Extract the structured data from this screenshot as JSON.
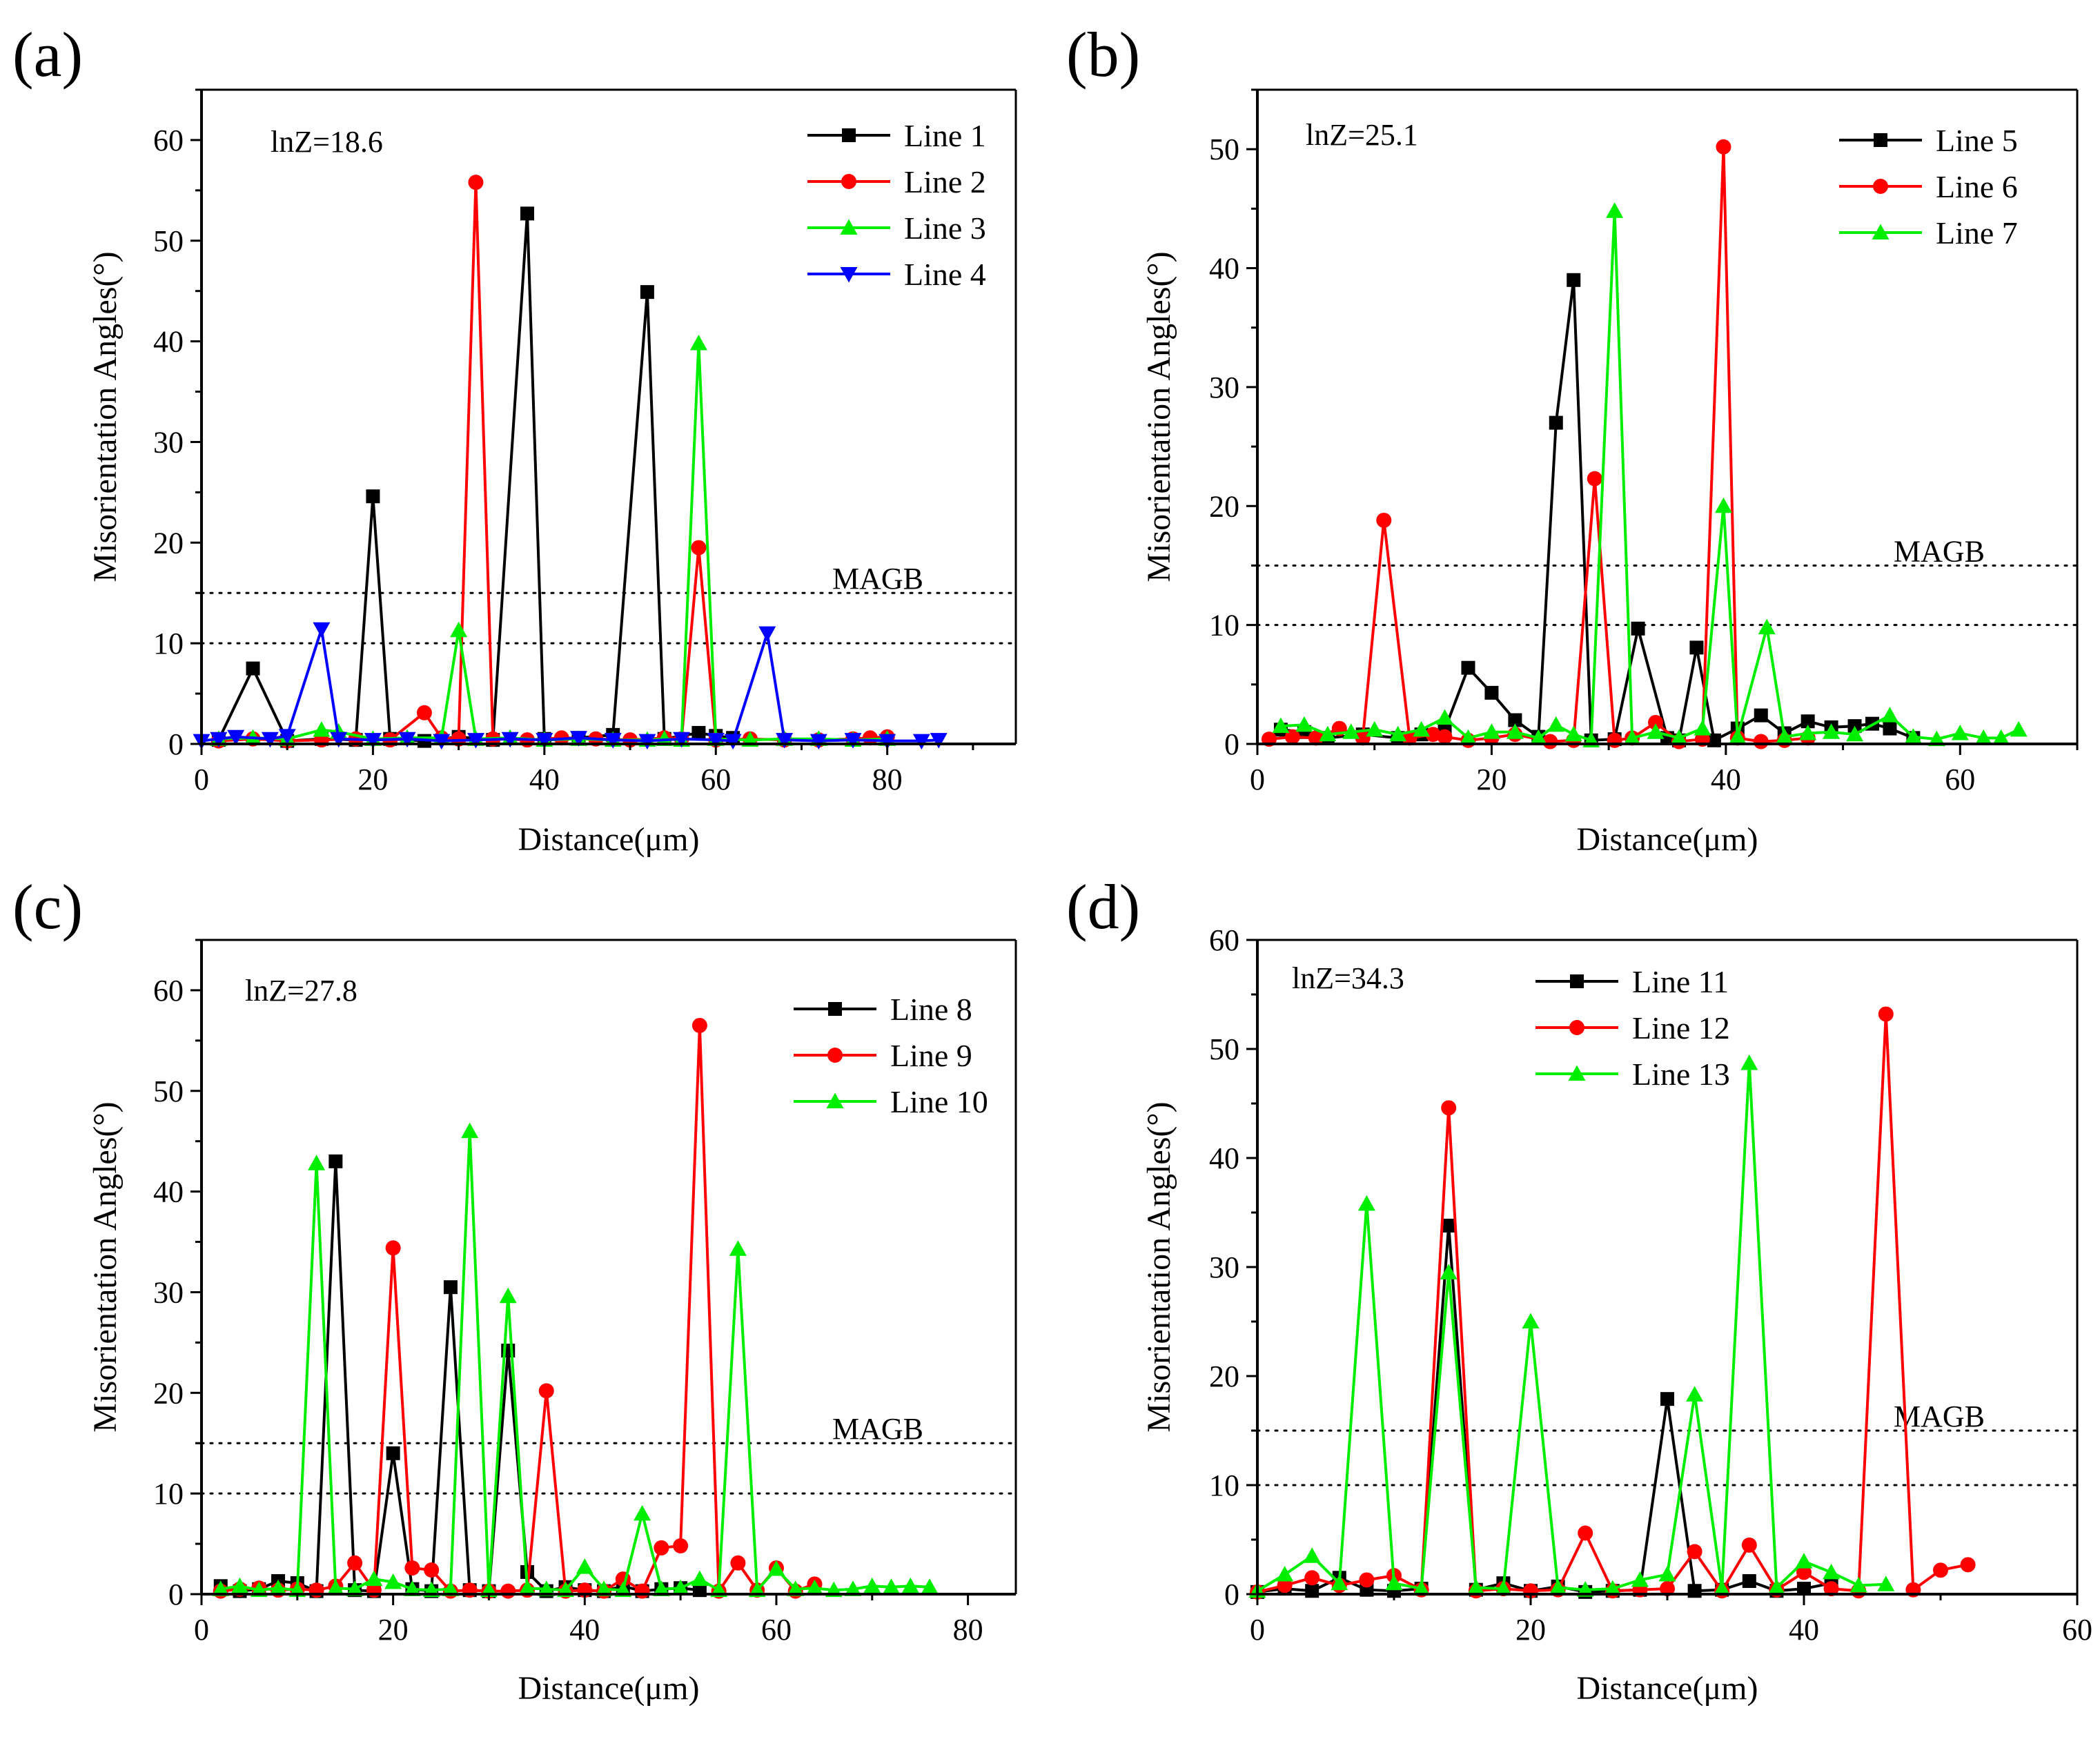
{
  "figure": {
    "panels": [
      "a",
      "b",
      "c",
      "d"
    ]
  },
  "colors": {
    "black": "#000000",
    "red": "#ff0000",
    "green": "#00ee00",
    "blue": "#0000ff"
  },
  "chart_data": [
    {
      "type": "line",
      "panel_label": "(a)",
      "annotation": "lnZ=18.6",
      "threshold_label": "MAGB",
      "thresholds": [
        10,
        15
      ],
      "xlabel": "Distance(μm)",
      "ylabel": "Misorientation Angles(°)",
      "xlim": [
        0,
        95
      ],
      "ylim": [
        0,
        65
      ],
      "xticks": [
        0,
        20,
        40,
        60,
        80
      ],
      "yticks": [
        0,
        10,
        20,
        30,
        40,
        50,
        60
      ],
      "legend_position": "top-right",
      "series": [
        {
          "name": "Line 1",
          "color": "black",
          "marker": "square",
          "x": [
            2,
            6,
            10,
            14,
            18,
            20,
            22,
            26,
            30,
            34,
            38,
            40,
            44,
            48,
            52,
            54,
            58,
            60,
            62
          ],
          "y": [
            0.4,
            7.5,
            0.3,
            0.5,
            0.4,
            24.6,
            0.5,
            0.3,
            0.7,
            0.4,
            52.7,
            0.5,
            0.6,
            0.9,
            44.9,
            0.5,
            1.1,
            0.8,
            0.6
          ]
        },
        {
          "name": "Line 2",
          "color": "red",
          "marker": "circle",
          "x": [
            2,
            6,
            10,
            14,
            18,
            22,
            26,
            28,
            30,
            32,
            34,
            38,
            42,
            46,
            50,
            54,
            56,
            58,
            60,
            64,
            68,
            72,
            76,
            78,
            80
          ],
          "y": [
            0.3,
            0.5,
            0.3,
            0.4,
            0.5,
            0.4,
            3.1,
            0.6,
            0.5,
            55.8,
            0.5,
            0.4,
            0.6,
            0.5,
            0.4,
            0.6,
            0.5,
            19.5,
            0.4,
            0.5,
            0.4,
            0.4,
            0.5,
            0.6,
            0.7
          ]
        },
        {
          "name": "Line 3",
          "color": "green",
          "marker": "triangle-up",
          "x": [
            2,
            6,
            10,
            14,
            16,
            20,
            24,
            28,
            30,
            32,
            36,
            40,
            44,
            48,
            52,
            54,
            56,
            58,
            60,
            64,
            68,
            72,
            76,
            80
          ],
          "y": [
            0.5,
            0.6,
            0.5,
            1.4,
            1.2,
            0.5,
            0.6,
            0.6,
            11.3,
            0.5,
            0.6,
            0.4,
            0.5,
            0.4,
            0.4,
            0.5,
            0.4,
            39.8,
            0.5,
            0.4,
            0.5,
            0.5,
            0.4,
            0.5
          ]
        },
        {
          "name": "Line 4",
          "color": "blue",
          "marker": "triangle-down",
          "x": [
            0,
            2,
            4,
            8,
            10,
            14,
            16,
            20,
            24,
            28,
            32,
            36,
            40,
            44,
            48,
            52,
            56,
            60,
            62,
            66,
            68,
            72,
            76,
            80,
            84,
            86
          ],
          "y": [
            0.3,
            0.5,
            0.7,
            0.5,
            0.8,
            11.4,
            0.5,
            0.4,
            0.5,
            0.3,
            0.4,
            0.5,
            0.4,
            0.6,
            0.4,
            0.3,
            0.5,
            0.4,
            0.3,
            11.0,
            0.4,
            0.3,
            0.4,
            0.3,
            0.3,
            0.4
          ]
        }
      ]
    },
    {
      "type": "line",
      "panel_label": "(b)",
      "annotation": "lnZ=25.1",
      "threshold_label": "MAGB",
      "thresholds": [
        10,
        15
      ],
      "xlabel": "Distance(μm)",
      "ylabel": "Misorientation Angles(°)",
      "xlim": [
        0,
        70
      ],
      "ylim": [
        0,
        55
      ],
      "xticks": [
        0,
        20,
        40,
        60
      ],
      "yticks": [
        0,
        10,
        20,
        30,
        40,
        50
      ],
      "legend_position": "top-right",
      "series": [
        {
          "name": "Line 5",
          "color": "black",
          "marker": "square",
          "x": [
            2,
            4,
            6,
            9,
            12,
            14,
            16,
            18,
            20,
            22,
            24,
            25.5,
            27,
            28.5,
            30.5,
            32.5,
            35,
            36,
            37.5,
            39,
            41,
            43,
            45,
            47,
            49,
            51,
            52.5,
            54,
            56
          ],
          "y": [
            1.2,
            1.0,
            0.5,
            0.8,
            0.5,
            0.8,
            1.2,
            6.4,
            4.3,
            2.0,
            0.6,
            27.0,
            39.0,
            0.3,
            0.4,
            9.7,
            0.5,
            0.3,
            8.1,
            0.3,
            1.3,
            2.4,
            0.9,
            1.9,
            1.4,
            1.5,
            1.7,
            1.3,
            0.5
          ]
        },
        {
          "name": "Line 6",
          "color": "red",
          "marker": "circle",
          "x": [
            1,
            3,
            5,
            7,
            9,
            10.8,
            13,
            15,
            16,
            18,
            20,
            22,
            25,
            27,
            28.8,
            30.5,
            32,
            34,
            36,
            38,
            39.8,
            41,
            43,
            45,
            47
          ],
          "y": [
            0.4,
            0.6,
            0.5,
            1.3,
            0.5,
            18.8,
            0.5,
            0.8,
            0.6,
            0.3,
            0.5,
            0.8,
            0.2,
            0.3,
            22.3,
            0.3,
            0.5,
            1.8,
            0.2,
            0.4,
            50.2,
            0.5,
            0.2,
            0.3,
            0.5
          ]
        },
        {
          "name": "Line 7",
          "color": "green",
          "marker": "triangle-up",
          "x": [
            2,
            4,
            6,
            8,
            10,
            12,
            14,
            16,
            18,
            20,
            22,
            24,
            25.5,
            27,
            28.5,
            30.5,
            32,
            34,
            36,
            38,
            39.8,
            41,
            43.5,
            45,
            47,
            49,
            51,
            54,
            56,
            58,
            60,
            62,
            63.5,
            65
          ],
          "y": [
            1.5,
            1.6,
            0.8,
            1.0,
            1.2,
            0.8,
            1.2,
            2.2,
            0.5,
            1.0,
            1.0,
            0.5,
            1.6,
            0.8,
            0.3,
            44.8,
            0.5,
            1.0,
            0.5,
            1.3,
            20.0,
            0.6,
            9.8,
            0.6,
            0.9,
            1.0,
            0.8,
            2.4,
            0.6,
            0.4,
            0.9,
            0.5,
            0.5,
            1.2
          ]
        }
      ]
    },
    {
      "type": "line",
      "panel_label": "(c)",
      "annotation": "lnZ=27.8",
      "threshold_label": "MAGB",
      "thresholds": [
        10,
        15
      ],
      "xlabel": "Distance(μm)",
      "ylabel": "Misorientation Angles(°)",
      "xlim": [
        0,
        85
      ],
      "ylim": [
        0,
        65
      ],
      "xticks": [
        0,
        20,
        40,
        60,
        80
      ],
      "yticks": [
        0,
        10,
        20,
        30,
        40,
        50,
        60
      ],
      "legend_position": "top-right",
      "series": [
        {
          "name": "Line 8",
          "color": "black",
          "marker": "square",
          "x": [
            2,
            4,
            6,
            8,
            10,
            12,
            14,
            16,
            18,
            20,
            22,
            24,
            26,
            28,
            30,
            32,
            34,
            36,
            38,
            40,
            42,
            44,
            46,
            48,
            50,
            52
          ],
          "y": [
            0.8,
            0.3,
            0.5,
            1.3,
            1.1,
            0.3,
            43.0,
            0.4,
            0.3,
            14.0,
            0.5,
            0.3,
            30.5,
            0.4,
            0.3,
            24.2,
            2.2,
            0.3,
            0.7,
            0.4,
            0.3,
            0.8,
            0.3,
            0.5,
            0.6,
            0.4
          ]
        },
        {
          "name": "Line 9",
          "color": "red",
          "marker": "circle",
          "x": [
            2,
            4,
            6,
            8,
            10,
            12,
            14,
            16,
            18,
            20,
            22,
            24,
            26,
            28,
            30,
            32,
            34,
            36,
            38,
            40,
            42,
            44,
            46,
            48,
            50,
            52,
            54,
            56,
            58,
            60,
            62,
            64
          ],
          "y": [
            0.3,
            0.5,
            0.6,
            0.4,
            0.5,
            0.4,
            0.8,
            3.1,
            0.4,
            34.4,
            2.6,
            2.4,
            0.3,
            0.4,
            0.3,
            0.3,
            0.4,
            20.2,
            0.3,
            0.4,
            0.3,
            1.5,
            0.3,
            4.6,
            4.8,
            56.5,
            0.3,
            3.1,
            0.4,
            2.6,
            0.3,
            1.0
          ]
        },
        {
          "name": "Line 10",
          "color": "green",
          "marker": "triangle-up",
          "x": [
            2,
            4,
            6,
            8,
            10,
            12,
            14,
            16,
            18,
            20,
            22,
            24,
            26,
            28,
            30,
            32,
            34,
            36,
            38,
            40,
            42,
            44,
            46,
            48,
            50,
            52,
            54,
            56,
            58,
            60,
            62,
            64,
            66,
            68,
            70,
            72,
            74,
            76
          ],
          "y": [
            0.5,
            0.8,
            0.4,
            0.6,
            0.4,
            42.8,
            0.6,
            0.5,
            1.5,
            1.2,
            0.5,
            0.4,
            0.5,
            46.0,
            0.4,
            29.6,
            0.6,
            0.5,
            0.4,
            2.7,
            0.5,
            0.4,
            8.0,
            0.5,
            0.6,
            1.5,
            0.4,
            34.3,
            0.4,
            2.5,
            0.5,
            0.6,
            0.4,
            0.5,
            0.8,
            0.7,
            0.8,
            0.7
          ]
        }
      ]
    },
    {
      "type": "line",
      "panel_label": "(d)",
      "annotation": "lnZ=34.3",
      "threshold_label": "MAGB",
      "thresholds": [
        10,
        15
      ],
      "xlabel": "Distance(μm)",
      "ylabel": "Misorientation Angles(°)",
      "xlim": [
        0,
        60
      ],
      "ylim": [
        0,
        60
      ],
      "xticks": [
        0,
        20,
        40,
        60
      ],
      "yticks": [
        0,
        10,
        20,
        30,
        40,
        50,
        60
      ],
      "legend_position": "top-left",
      "series": [
        {
          "name": "Line 11",
          "color": "black",
          "marker": "square",
          "x": [
            0,
            2,
            4,
            6,
            8,
            10,
            12,
            14,
            16,
            18,
            20,
            22,
            24,
            26,
            28,
            30,
            32,
            34,
            36,
            38,
            40,
            42
          ],
          "y": [
            0.2,
            0.5,
            0.3,
            1.5,
            0.4,
            0.3,
            0.5,
            33.8,
            0.4,
            1.0,
            0.3,
            0.7,
            0.2,
            0.3,
            0.4,
            17.9,
            0.3,
            0.4,
            1.2,
            0.3,
            0.5,
            1.0
          ]
        },
        {
          "name": "Line 12",
          "color": "red",
          "marker": "circle",
          "x": [
            0,
            2,
            4,
            6,
            8,
            10,
            12,
            14,
            16,
            18,
            20,
            22,
            24,
            26,
            28,
            30,
            32,
            34,
            36,
            38,
            40,
            42,
            44,
            46,
            48,
            50,
            52
          ],
          "y": [
            0.2,
            0.8,
            1.5,
            0.8,
            1.3,
            1.7,
            0.4,
            44.6,
            0.3,
            0.5,
            0.3,
            0.4,
            5.6,
            0.3,
            0.4,
            0.5,
            3.9,
            0.3,
            4.5,
            0.4,
            2.0,
            0.5,
            0.3,
            53.2,
            0.4,
            2.2,
            2.7
          ]
        },
        {
          "name": "Line 13",
          "color": "green",
          "marker": "triangle-up",
          "x": [
            0,
            2,
            4,
            6,
            8,
            10,
            12,
            14,
            16,
            18,
            20,
            22,
            24,
            26,
            28,
            30,
            32,
            34,
            36,
            38,
            40,
            42,
            44,
            46
          ],
          "y": [
            0.3,
            1.8,
            3.5,
            1.0,
            35.8,
            1.0,
            0.5,
            29.5,
            0.6,
            0.5,
            25.0,
            0.6,
            0.4,
            0.5,
            1.3,
            1.8,
            18.3,
            0.5,
            48.7,
            0.6,
            3.0,
            2.0,
            0.8,
            0.9
          ]
        }
      ]
    }
  ]
}
